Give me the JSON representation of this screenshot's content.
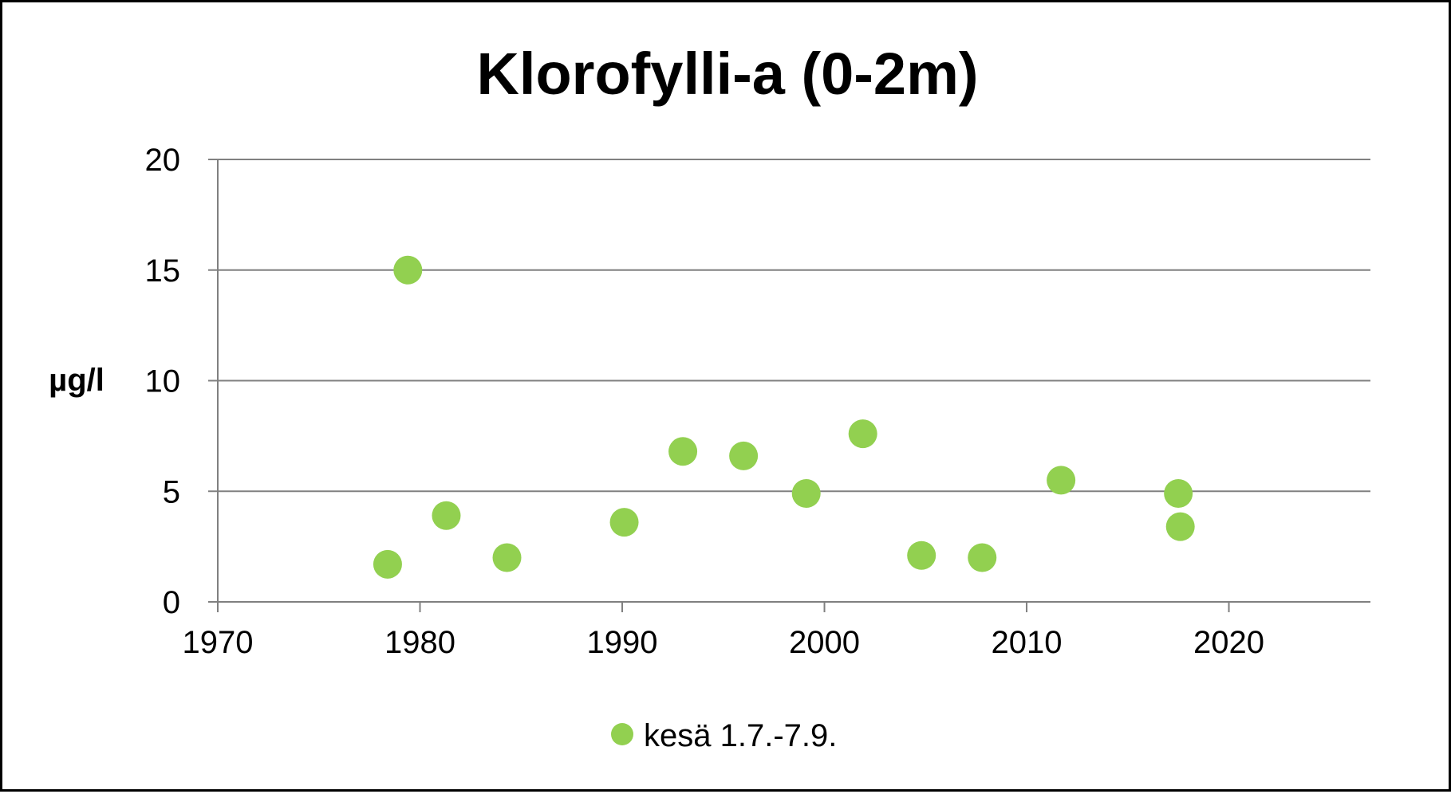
{
  "chart_data": {
    "type": "scatter",
    "title": "Klorofylli-a (0-2m)",
    "xlabel": "",
    "ylabel": "µg/l",
    "xlim": [
      1970,
      2027
    ],
    "ylim": [
      0,
      20
    ],
    "x_ticks": [
      "1970",
      "1980",
      "1990",
      "2000",
      "2010",
      "2020"
    ],
    "y_ticks": [
      "0",
      "5",
      "10",
      "15",
      "20"
    ],
    "grid": "horizontal",
    "legend_position": "bottom",
    "series": [
      {
        "name": "kesä 1.7.-7.9.",
        "color": "#92d050",
        "points": [
          {
            "x": 1978.4,
            "y": 1.7
          },
          {
            "x": 1979.4,
            "y": 15.0
          },
          {
            "x": 1981.3,
            "y": 3.9
          },
          {
            "x": 1984.3,
            "y": 2.0
          },
          {
            "x": 1990.1,
            "y": 3.6
          },
          {
            "x": 1993.0,
            "y": 6.8
          },
          {
            "x": 1996.0,
            "y": 6.6
          },
          {
            "x": 1999.1,
            "y": 4.9
          },
          {
            "x": 2001.9,
            "y": 7.6
          },
          {
            "x": 2004.8,
            "y": 2.1
          },
          {
            "x": 2007.8,
            "y": 2.0
          },
          {
            "x": 2011.7,
            "y": 5.5
          },
          {
            "x": 2017.5,
            "y": 4.9
          },
          {
            "x": 2017.6,
            "y": 3.4
          }
        ]
      }
    ]
  }
}
